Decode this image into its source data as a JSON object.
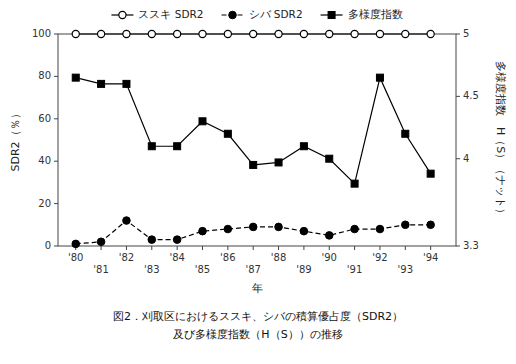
{
  "chart_data": {
    "type": "line",
    "title": "図2．刈取区におけるススキ、シバの積算優占度（SDR2）",
    "subtitle": "及び多様度指数（H（S））の推移",
    "xlabel": "年",
    "ylabel": "SDR2（％）",
    "y2label": "多様度指数　H（S）（ナット）",
    "x": [
      1980,
      1981,
      1982,
      1983,
      1984,
      1985,
      1986,
      1987,
      1988,
      1989,
      1990,
      1991,
      1992,
      1993,
      1994
    ],
    "series": [
      {
        "name": "ススキ SDR2",
        "color": "#000000",
        "marker": "circle-open",
        "line_style": "solid",
        "values": [
          100,
          100,
          100,
          100,
          100,
          100,
          100,
          100,
          100,
          100,
          100,
          100,
          100,
          100,
          100
        ]
      },
      {
        "name": "シバ SDR2",
        "color": "#000000",
        "marker": "circle",
        "line_style": "dashed",
        "values": [
          1,
          2,
          12,
          3,
          3,
          7,
          8,
          9,
          9,
          7,
          5,
          8,
          8,
          10,
          10
        ]
      },
      {
        "name": "多様度指数",
        "color": "#000000",
        "marker": "square",
        "line_style": "solid",
        "axis": "y2",
        "values": [
          4.65,
          4.6,
          4.6,
          4.1,
          4.1,
          4.3,
          4.2,
          3.95,
          3.97,
          4.1,
          4.0,
          3.8,
          4.65,
          4.2,
          3.88
        ]
      }
    ],
    "xlim": [
      1979.3,
      1995.0
    ],
    "xticks": [
      {
        "value": 1980,
        "label": "'80"
      },
      {
        "value": 1981,
        "label": "'81"
      },
      {
        "value": 1982,
        "label": "'82"
      },
      {
        "value": 1983,
        "label": "'83"
      },
      {
        "value": 1984,
        "label": "'84"
      },
      {
        "value": 1985,
        "label": "'85"
      },
      {
        "value": 1986,
        "label": "'86"
      },
      {
        "value": 1987,
        "label": "'87"
      },
      {
        "value": 1988,
        "label": "'88"
      },
      {
        "value": 1989,
        "label": "'89"
      },
      {
        "value": 1990,
        "label": "'90"
      },
      {
        "value": 1991,
        "label": "'91"
      },
      {
        "value": 1992,
        "label": "'92"
      },
      {
        "value": 1993,
        "label": "'93"
      },
      {
        "value": 1994,
        "label": "'94"
      }
    ],
    "ylim": [
      0,
      100
    ],
    "yticks": [
      0,
      20,
      40,
      60,
      80,
      100
    ],
    "y2lim": [
      3.3,
      5
    ],
    "y2ticks": [
      3.3,
      4,
      4.5,
      5
    ],
    "grid": false,
    "legend": "top"
  }
}
